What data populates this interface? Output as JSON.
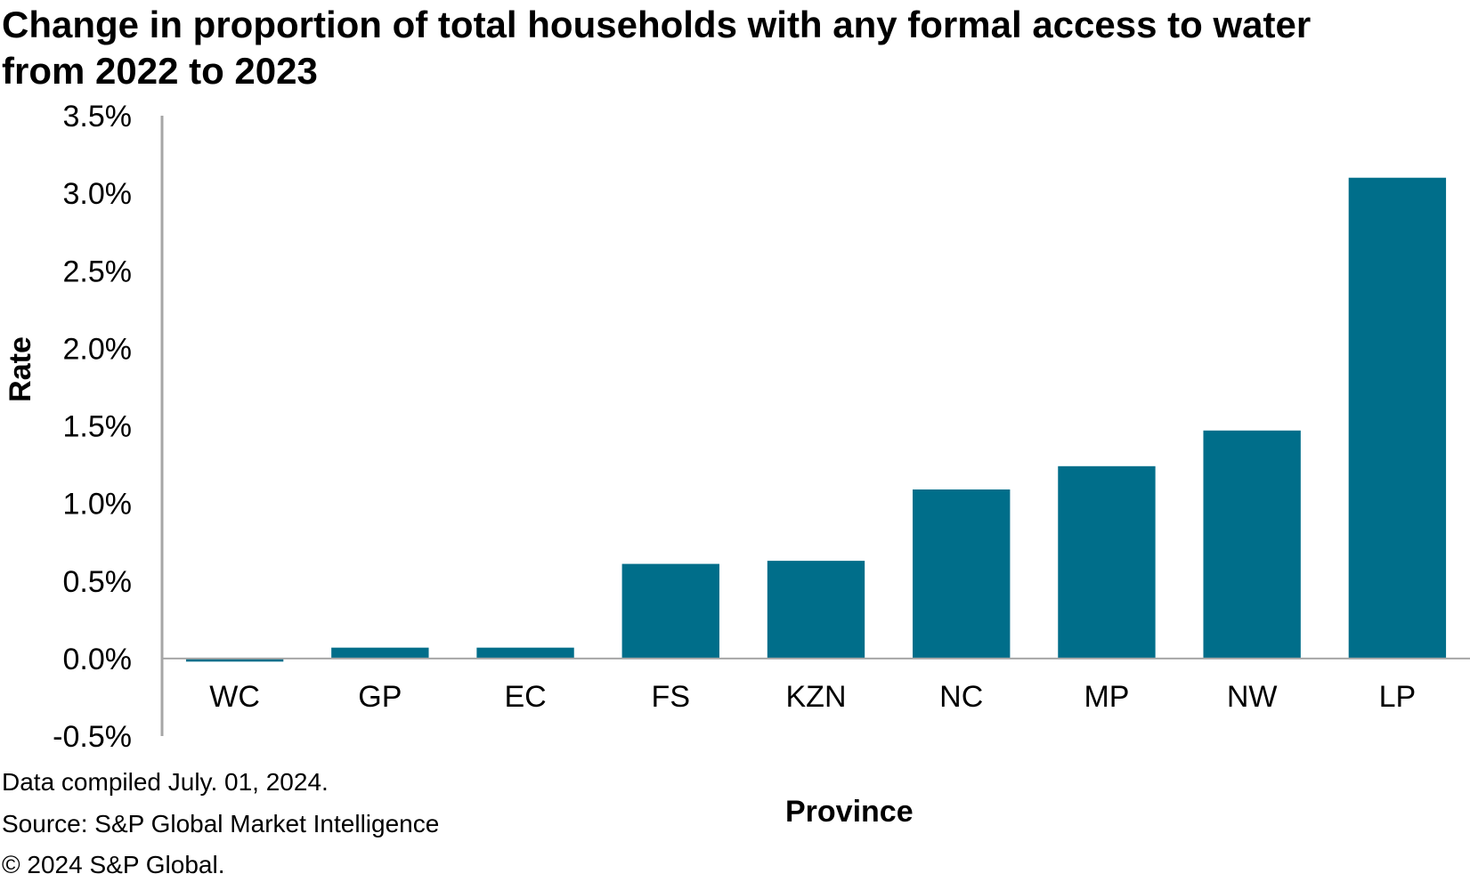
{
  "title": {
    "line1": "Change in proportion of total households with any formal access to water",
    "line2": "from 2022 to 2023"
  },
  "footer": {
    "compiled": "Data compiled July. 01, 2024.",
    "source": "Source: S&P Global Market Intelligence",
    "copyright": "© 2024 S&P Global."
  },
  "colors": {
    "bar": "#006E8A",
    "axis": "#A6A6A6",
    "text": "#000000"
  },
  "chart_data": {
    "type": "bar",
    "title": "Change in proportion of total households with any formal access to water from 2022 to 2023",
    "xlabel": "Province",
    "ylabel": "Rate",
    "categories": [
      "WC",
      "GP",
      "EC",
      "FS",
      "KZN",
      "NC",
      "MP",
      "NW",
      "LP"
    ],
    "values": [
      -0.02,
      0.07,
      0.07,
      0.61,
      0.63,
      1.09,
      1.24,
      1.47,
      3.1
    ],
    "ylim": [
      -0.5,
      3.5
    ],
    "yticks": [
      3.5,
      3.0,
      2.5,
      2.0,
      1.5,
      1.0,
      0.5,
      0.0,
      -0.5
    ],
    "ytick_labels": [
      "3.5%",
      "3.0%",
      "2.5%",
      "2.0%",
      "1.5%",
      "1.0%",
      "0.5%",
      "0.0%",
      "-0.5%"
    ],
    "grid": false,
    "legend": "none"
  }
}
